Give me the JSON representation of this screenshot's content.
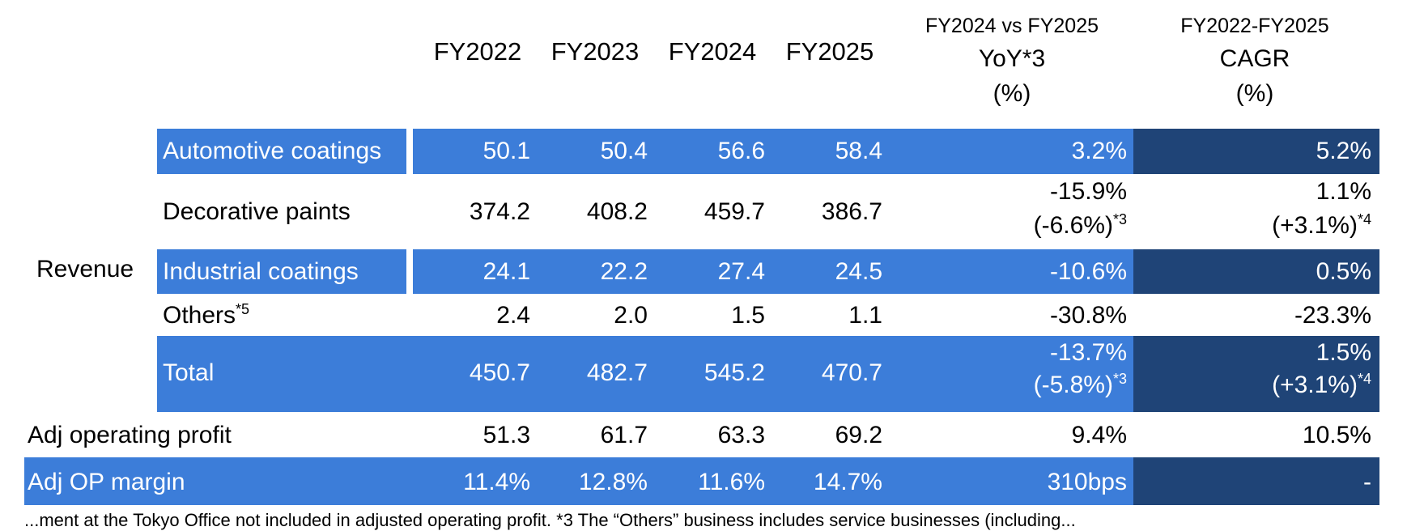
{
  "header": {
    "years": [
      "FY2022",
      "FY2023",
      "FY2024",
      "FY2025"
    ],
    "yoy_line1": "FY2024 vs FY2025",
    "yoy_line2": "YoY*3",
    "yoy_line3": "(%)",
    "cagr_line1": "FY2022-FY2025",
    "cagr_line2": "CAGR",
    "cagr_line3": "(%)"
  },
  "group_label": "Revenue",
  "rows": {
    "automotive": {
      "label": "Automotive coatings",
      "values": [
        "50.1",
        "50.4",
        "56.6",
        "58.4"
      ],
      "yoy": "3.2%",
      "cagr": "5.2%"
    },
    "decorative": {
      "label": "Decorative paints",
      "values": [
        "374.2",
        "408.2",
        "459.7",
        "386.7"
      ],
      "yoy": "-15.9%",
      "yoy_sub": "(-6.6%)",
      "yoy_sub_note": "*3",
      "cagr": "1.1%",
      "cagr_sub": "(+3.1%)",
      "cagr_sub_note": "*4"
    },
    "industrial": {
      "label": "Industrial coatings",
      "values": [
        "24.1",
        "22.2",
        "27.4",
        "24.5"
      ],
      "yoy": "-10.6%",
      "cagr": "0.5%"
    },
    "others": {
      "label": "Others",
      "label_note": "*5",
      "values": [
        "2.4",
        "2.0",
        "1.5",
        "1.1"
      ],
      "yoy": "-30.8%",
      "cagr": "-23.3%"
    },
    "total": {
      "label": "Total",
      "values": [
        "450.7",
        "482.7",
        "545.2",
        "470.7"
      ],
      "yoy": "-13.7%",
      "yoy_sub": "(-5.8%)",
      "yoy_sub_note": "*3",
      "cagr": "1.5%",
      "cagr_sub": "(+3.1%)",
      "cagr_sub_note": "*4"
    },
    "adj_op": {
      "label": "Adj operating profit",
      "values": [
        "51.3",
        "61.7",
        "63.3",
        "69.2"
      ],
      "yoy": "9.4%",
      "cagr": "10.5%"
    },
    "adj_margin": {
      "label": "Adj OP margin",
      "values": [
        "11.4%",
        "12.8%",
        "11.6%",
        "14.7%"
      ],
      "yoy": "310bps",
      "cagr": "-"
    }
  },
  "footnote": "...ment at the Tokyo Office not included in adjusted operating profit. *3 The “Others” business includes service businesses (including...",
  "colors": {
    "bar_blue": "#3c7dd9",
    "bar_dark": "#1f4477"
  }
}
